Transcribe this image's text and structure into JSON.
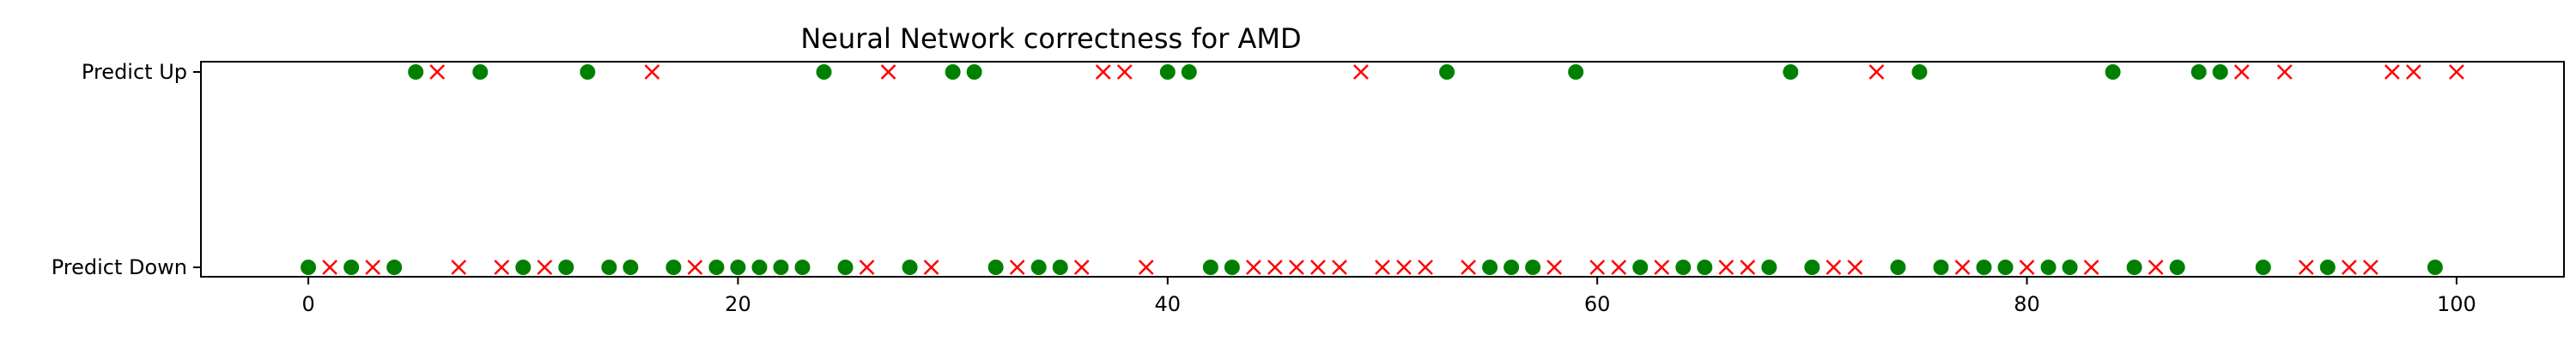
{
  "chart_data": {
    "type": "scatter",
    "title": "Neural Network correctness for AMD",
    "xlabel": "",
    "ylabel": "",
    "xlim": [
      -5,
      105
    ],
    "x_ticks": [
      0,
      20,
      40,
      60,
      80,
      100
    ],
    "y_categories": [
      "Predict Down",
      "Predict Up"
    ],
    "grid": false,
    "colors": {
      "correct": "#008000",
      "incorrect": "#ff0000",
      "axis": "#000000"
    },
    "markers": {
      "correct": "circle",
      "incorrect": "x"
    },
    "points": [
      {
        "x": 0,
        "pred": "down",
        "correct": true
      },
      {
        "x": 1,
        "pred": "down",
        "correct": false
      },
      {
        "x": 2,
        "pred": "down",
        "correct": true
      },
      {
        "x": 3,
        "pred": "down",
        "correct": false
      },
      {
        "x": 4,
        "pred": "down",
        "correct": true
      },
      {
        "x": 5,
        "pred": "up",
        "correct": true
      },
      {
        "x": 6,
        "pred": "up",
        "correct": false
      },
      {
        "x": 7,
        "pred": "down",
        "correct": false
      },
      {
        "x": 8,
        "pred": "up",
        "correct": true
      },
      {
        "x": 9,
        "pred": "down",
        "correct": false
      },
      {
        "x": 10,
        "pred": "down",
        "correct": true
      },
      {
        "x": 11,
        "pred": "down",
        "correct": false
      },
      {
        "x": 12,
        "pred": "down",
        "correct": true
      },
      {
        "x": 13,
        "pred": "up",
        "correct": true
      },
      {
        "x": 14,
        "pred": "down",
        "correct": true
      },
      {
        "x": 15,
        "pred": "down",
        "correct": true
      },
      {
        "x": 16,
        "pred": "up",
        "correct": false
      },
      {
        "x": 17,
        "pred": "down",
        "correct": true
      },
      {
        "x": 18,
        "pred": "down",
        "correct": false
      },
      {
        "x": 19,
        "pred": "down",
        "correct": true
      },
      {
        "x": 20,
        "pred": "down",
        "correct": true
      },
      {
        "x": 21,
        "pred": "down",
        "correct": true
      },
      {
        "x": 22,
        "pred": "down",
        "correct": true
      },
      {
        "x": 23,
        "pred": "down",
        "correct": true
      },
      {
        "x": 24,
        "pred": "up",
        "correct": true
      },
      {
        "x": 25,
        "pred": "down",
        "correct": true
      },
      {
        "x": 26,
        "pred": "down",
        "correct": false
      },
      {
        "x": 27,
        "pred": "up",
        "correct": false
      },
      {
        "x": 28,
        "pred": "down",
        "correct": true
      },
      {
        "x": 29,
        "pred": "down",
        "correct": false
      },
      {
        "x": 30,
        "pred": "up",
        "correct": true
      },
      {
        "x": 31,
        "pred": "up",
        "correct": true
      },
      {
        "x": 32,
        "pred": "down",
        "correct": true
      },
      {
        "x": 33,
        "pred": "down",
        "correct": false
      },
      {
        "x": 34,
        "pred": "down",
        "correct": true
      },
      {
        "x": 35,
        "pred": "down",
        "correct": true
      },
      {
        "x": 36,
        "pred": "down",
        "correct": false
      },
      {
        "x": 37,
        "pred": "up",
        "correct": false
      },
      {
        "x": 38,
        "pred": "up",
        "correct": false
      },
      {
        "x": 39,
        "pred": "down",
        "correct": false
      },
      {
        "x": 40,
        "pred": "up",
        "correct": true
      },
      {
        "x": 41,
        "pred": "up",
        "correct": true
      },
      {
        "x": 42,
        "pred": "down",
        "correct": true
      },
      {
        "x": 43,
        "pred": "down",
        "correct": true
      },
      {
        "x": 44,
        "pred": "down",
        "correct": false
      },
      {
        "x": 45,
        "pred": "down",
        "correct": false
      },
      {
        "x": 46,
        "pred": "down",
        "correct": false
      },
      {
        "x": 47,
        "pred": "down",
        "correct": false
      },
      {
        "x": 48,
        "pred": "down",
        "correct": false
      },
      {
        "x": 49,
        "pred": "up",
        "correct": false
      },
      {
        "x": 50,
        "pred": "down",
        "correct": false
      },
      {
        "x": 51,
        "pred": "down",
        "correct": false
      },
      {
        "x": 52,
        "pred": "down",
        "correct": false
      },
      {
        "x": 53,
        "pred": "up",
        "correct": true
      },
      {
        "x": 54,
        "pred": "down",
        "correct": false
      },
      {
        "x": 55,
        "pred": "down",
        "correct": true
      },
      {
        "x": 56,
        "pred": "down",
        "correct": true
      },
      {
        "x": 57,
        "pred": "down",
        "correct": true
      },
      {
        "x": 58,
        "pred": "down",
        "correct": false
      },
      {
        "x": 59,
        "pred": "up",
        "correct": true
      },
      {
        "x": 60,
        "pred": "down",
        "correct": false
      },
      {
        "x": 61,
        "pred": "down",
        "correct": false
      },
      {
        "x": 62,
        "pred": "down",
        "correct": true
      },
      {
        "x": 63,
        "pred": "down",
        "correct": false
      },
      {
        "x": 64,
        "pred": "down",
        "correct": true
      },
      {
        "x": 65,
        "pred": "down",
        "correct": true
      },
      {
        "x": 66,
        "pred": "down",
        "correct": false
      },
      {
        "x": 67,
        "pred": "down",
        "correct": false
      },
      {
        "x": 68,
        "pred": "down",
        "correct": true
      },
      {
        "x": 69,
        "pred": "up",
        "correct": true
      },
      {
        "x": 70,
        "pred": "down",
        "correct": true
      },
      {
        "x": 71,
        "pred": "down",
        "correct": false
      },
      {
        "x": 72,
        "pred": "down",
        "correct": false
      },
      {
        "x": 73,
        "pred": "up",
        "correct": false
      },
      {
        "x": 74,
        "pred": "down",
        "correct": true
      },
      {
        "x": 75,
        "pred": "up",
        "correct": true
      },
      {
        "x": 76,
        "pred": "down",
        "correct": true
      },
      {
        "x": 77,
        "pred": "down",
        "correct": false
      },
      {
        "x": 78,
        "pred": "down",
        "correct": true
      },
      {
        "x": 79,
        "pred": "down",
        "correct": true
      },
      {
        "x": 80,
        "pred": "down",
        "correct": false
      },
      {
        "x": 81,
        "pred": "down",
        "correct": true
      },
      {
        "x": 82,
        "pred": "down",
        "correct": true
      },
      {
        "x": 83,
        "pred": "down",
        "correct": false
      },
      {
        "x": 84,
        "pred": "up",
        "correct": true
      },
      {
        "x": 85,
        "pred": "down",
        "correct": true
      },
      {
        "x": 86,
        "pred": "down",
        "correct": false
      },
      {
        "x": 87,
        "pred": "down",
        "correct": true
      },
      {
        "x": 88,
        "pred": "up",
        "correct": true
      },
      {
        "x": 89,
        "pred": "up",
        "correct": true
      },
      {
        "x": 90,
        "pred": "up",
        "correct": false
      },
      {
        "x": 91,
        "pred": "down",
        "correct": true
      },
      {
        "x": 92,
        "pred": "up",
        "correct": false
      },
      {
        "x": 93,
        "pred": "down",
        "correct": false
      },
      {
        "x": 94,
        "pred": "down",
        "correct": true
      },
      {
        "x": 95,
        "pred": "down",
        "correct": false
      },
      {
        "x": 96,
        "pred": "down",
        "correct": false
      },
      {
        "x": 97,
        "pred": "up",
        "correct": false
      },
      {
        "x": 98,
        "pred": "up",
        "correct": false
      },
      {
        "x": 99,
        "pred": "down",
        "correct": true
      },
      {
        "x": 100,
        "pred": "up",
        "correct": false
      }
    ]
  }
}
